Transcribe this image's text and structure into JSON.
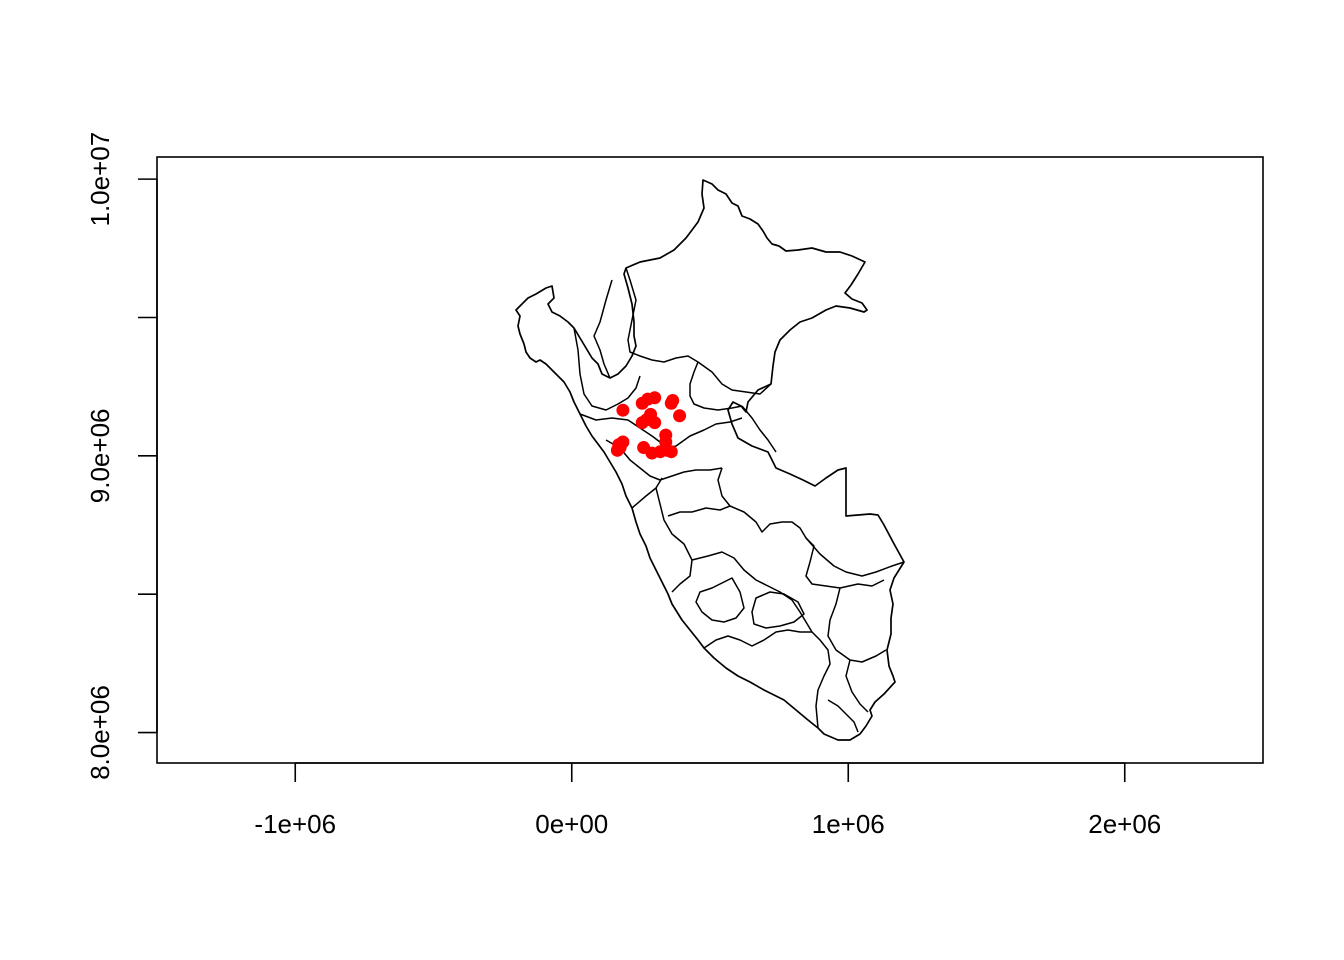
{
  "chart_data": {
    "type": "scatter",
    "title": "",
    "xlabel": "",
    "ylabel": "",
    "xlim": [
      -1500000,
      2500000
    ],
    "ylim": [
      7890000,
      10080000
    ],
    "x_ticks": [
      {
        "value": -1000000,
        "label": "-1e+06"
      },
      {
        "value": 0,
        "label": "0e+00"
      },
      {
        "value": 1000000,
        "label": "1e+06"
      },
      {
        "value": 2000000,
        "label": "2e+06"
      }
    ],
    "y_ticks": [
      {
        "value": 8000000,
        "label": "8.0e+06"
      },
      {
        "value": 8500000,
        "label": ""
      },
      {
        "value": 9000000,
        "label": "9.0e+06"
      },
      {
        "value": 9500000,
        "label": ""
      },
      {
        "value": 10000000,
        "label": "1.0e+07"
      }
    ],
    "grid": false,
    "point_color": "#ff0000",
    "points": [
      {
        "x": 185000,
        "y": 9165000
      },
      {
        "x": 170000,
        "y": 9040000
      },
      {
        "x": 185000,
        "y": 9050000
      },
      {
        "x": 175000,
        "y": 9030000
      },
      {
        "x": 165000,
        "y": 9020000
      },
      {
        "x": 255000,
        "y": 9190000
      },
      {
        "x": 275000,
        "y": 9205000
      },
      {
        "x": 300000,
        "y": 9210000
      },
      {
        "x": 285000,
        "y": 9150000
      },
      {
        "x": 255000,
        "y": 9120000
      },
      {
        "x": 270000,
        "y": 9130000
      },
      {
        "x": 300000,
        "y": 9120000
      },
      {
        "x": 365000,
        "y": 9200000
      },
      {
        "x": 360000,
        "y": 9190000
      },
      {
        "x": 390000,
        "y": 9145000
      },
      {
        "x": 340000,
        "y": 9075000
      },
      {
        "x": 260000,
        "y": 9030000
      },
      {
        "x": 290000,
        "y": 9010000
      },
      {
        "x": 320000,
        "y": 9015000
      },
      {
        "x": 345000,
        "y": 9020000
      },
      {
        "x": 360000,
        "y": 9015000
      },
      {
        "x": 340000,
        "y": 9050000
      }
    ]
  }
}
